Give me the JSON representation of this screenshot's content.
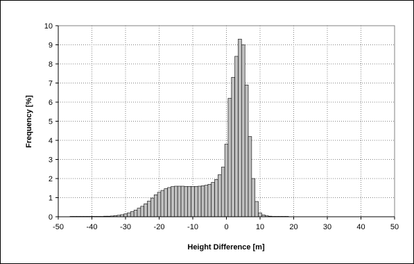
{
  "chart_data": {
    "type": "bar",
    "title": "",
    "xlabel": "Height Difference [m]",
    "ylabel": "Frequency [%]",
    "xlim": [
      -50,
      50
    ],
    "ylim": [
      0,
      10
    ],
    "x_ticks": [
      -50,
      -40,
      -30,
      -20,
      -10,
      0,
      10,
      20,
      30,
      40,
      50
    ],
    "y_ticks": [
      0,
      1,
      2,
      3,
      4,
      5,
      6,
      7,
      8,
      9,
      10
    ],
    "grid": true,
    "bin_width": 1,
    "colors": {
      "bar_fill": "#c0c0c0",
      "bar_stroke": "#000000",
      "grid": "#808080"
    },
    "x": [
      -46,
      -45,
      -44,
      -43,
      -42,
      -41,
      -40,
      -39,
      -38,
      -37,
      -36,
      -35,
      -34,
      -33,
      -32,
      -31,
      -30,
      -29,
      -28,
      -27,
      -26,
      -25,
      -24,
      -23,
      -22,
      -21,
      -20,
      -19,
      -18,
      -17,
      -16,
      -15,
      -14,
      -13,
      -12,
      -11,
      -10,
      -9,
      -8,
      -7,
      -6,
      -5,
      -4,
      -3,
      -2,
      -1,
      0,
      1,
      2,
      3,
      4,
      5,
      6,
      7,
      8,
      9,
      10,
      11,
      12,
      13,
      14,
      15,
      16,
      17,
      18
    ],
    "values": [
      0.02,
      0.02,
      0.02,
      0.02,
      0.02,
      0.02,
      0.02,
      0.02,
      0.02,
      0.02,
      0.03,
      0.03,
      0.04,
      0.06,
      0.08,
      0.11,
      0.15,
      0.2,
      0.27,
      0.35,
      0.45,
      0.55,
      0.68,
      0.82,
      0.98,
      1.15,
      1.28,
      1.38,
      1.47,
      1.53,
      1.58,
      1.6,
      1.6,
      1.6,
      1.59,
      1.59,
      1.59,
      1.59,
      1.6,
      1.62,
      1.65,
      1.7,
      1.8,
      1.95,
      2.2,
      2.6,
      3.8,
      6.2,
      7.3,
      8.4,
      9.3,
      9.0,
      6.9,
      4.2,
      2.0,
      0.8,
      0.2,
      0.1,
      0.05,
      0.03,
      0.02,
      0.02,
      0.02,
      0.02,
      0.02
    ]
  }
}
